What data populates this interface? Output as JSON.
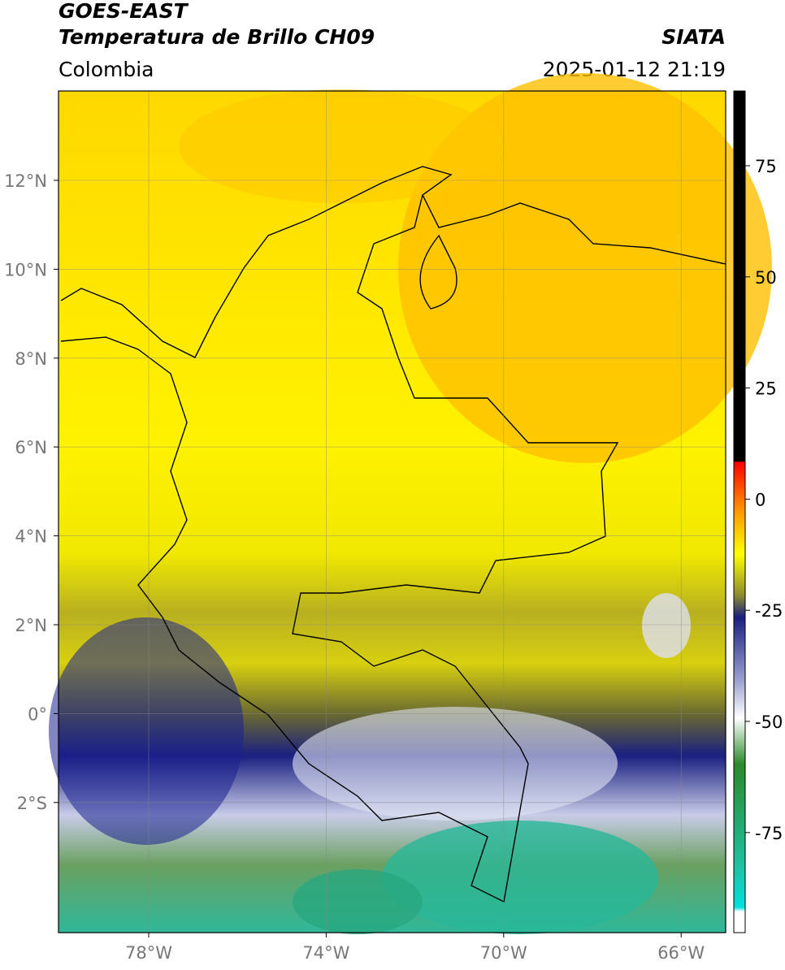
{
  "header": {
    "satellite": "GOES-EAST",
    "product": "Temperatura de Brillo CH09",
    "region": "Colombia",
    "agency": "SIATA",
    "datetime": "2025-01-12 21:19"
  },
  "map": {
    "lat_labels": [
      "12°N",
      "10°N",
      "8°N",
      "6°N",
      "4°N",
      "2°N",
      "0°",
      "2°S"
    ],
    "lon_labels": [
      "78°W",
      "74°W",
      "70°W",
      "66°W"
    ]
  },
  "colorbar": {
    "tick_labels": [
      75,
      50,
      25,
      0,
      -25,
      -50,
      -75
    ]
  }
}
